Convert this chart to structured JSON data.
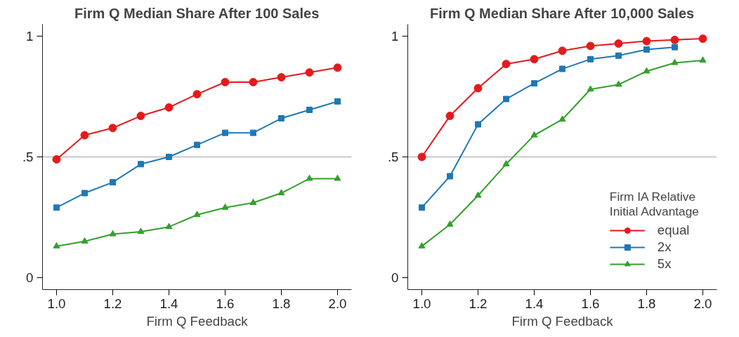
{
  "chart_data": [
    {
      "type": "line",
      "title": "Firm Q Median Share After 100 Sales",
      "xlabel": "Firm Q Feedback",
      "x": [
        1.0,
        1.1,
        1.2,
        1.3,
        1.4,
        1.5,
        1.6,
        1.7,
        1.8,
        1.9,
        2.0
      ],
      "xlim": [
        0.95,
        2.05
      ],
      "ylim": [
        -0.05,
        1.05
      ],
      "xticks": [
        {
          "value": 1.0,
          "label": "1.0"
        },
        {
          "value": 1.2,
          "label": "1.2"
        },
        {
          "value": 1.4,
          "label": "1.4"
        },
        {
          "value": 1.6,
          "label": "1.6"
        },
        {
          "value": 1.8,
          "label": "1.8"
        },
        {
          "value": 2.0,
          "label": "2.0"
        }
      ],
      "yticks": [
        0,
        {
          "value": 0.5,
          "label": ".5"
        },
        1
      ],
      "grid": false,
      "legend": false,
      "ref_lines": [
        {
          "axis": "y",
          "value": 0.5,
          "color": "#bbbbbb"
        }
      ],
      "series": [
        {
          "color": "#e41a1c",
          "marker": "circle",
          "values": [
            0.49,
            0.59,
            0.62,
            0.67,
            0.705,
            0.76,
            0.81,
            0.81,
            0.83,
            0.85,
            0.87
          ]
        },
        {
          "color": "#1f78b4",
          "marker": "square",
          "values": [
            0.29,
            0.35,
            0.395,
            0.47,
            0.5,
            0.55,
            0.6,
            0.6,
            0.66,
            0.695,
            0.73
          ]
        },
        {
          "color": "#33a02c",
          "marker": "triangle",
          "values": [
            0.13,
            0.15,
            0.18,
            0.19,
            0.21,
            0.26,
            0.29,
            0.31,
            0.35,
            0.41,
            0.41
          ]
        }
      ]
    },
    {
      "type": "line",
      "title": "Firm Q Median Share After 10,000 Sales",
      "xlabel": "Firm Q Feedback",
      "x": [
        1.0,
        1.1,
        1.2,
        1.3,
        1.4,
        1.5,
        1.6,
        1.7,
        1.8,
        1.9,
        2.0
      ],
      "xlim": [
        0.95,
        2.05
      ],
      "ylim": [
        -0.05,
        1.05
      ],
      "xticks": [
        {
          "value": 1.0,
          "label": "1.0"
        },
        {
          "value": 1.2,
          "label": "1.2"
        },
        {
          "value": 1.4,
          "label": "1.4"
        },
        {
          "value": 1.6,
          "label": "1.6"
        },
        {
          "value": 1.8,
          "label": "1.8"
        },
        {
          "value": 2.0,
          "label": "2.0"
        }
      ],
      "yticks": [
        0,
        {
          "value": 0.5,
          "label": ".5"
        },
        1
      ],
      "grid": false,
      "legend": "bottom right",
      "legend_title": "Firm IA Relative\nInitial Advantage",
      "ref_lines": [
        {
          "axis": "y",
          "value": 0.5,
          "color": "#bbbbbb"
        }
      ],
      "series": [
        {
          "name": "equal",
          "color": "#e41a1c",
          "marker": "circle",
          "values": [
            0.5,
            0.67,
            0.785,
            0.885,
            0.905,
            0.94,
            0.96,
            0.97,
            0.98,
            0.985,
            0.99
          ]
        },
        {
          "name": "2x",
          "color": "#1f78b4",
          "marker": "square",
          "values": [
            0.29,
            0.42,
            0.635,
            0.74,
            0.805,
            0.865,
            0.905,
            0.92,
            0.945,
            0.955,
            null
          ]
        },
        {
          "name": "5x",
          "color": "#33a02c",
          "marker": "triangle",
          "values": [
            0.13,
            0.22,
            0.34,
            0.47,
            0.59,
            0.655,
            0.78,
            0.8,
            0.855,
            0.89,
            0.9
          ]
        }
      ]
    }
  ]
}
